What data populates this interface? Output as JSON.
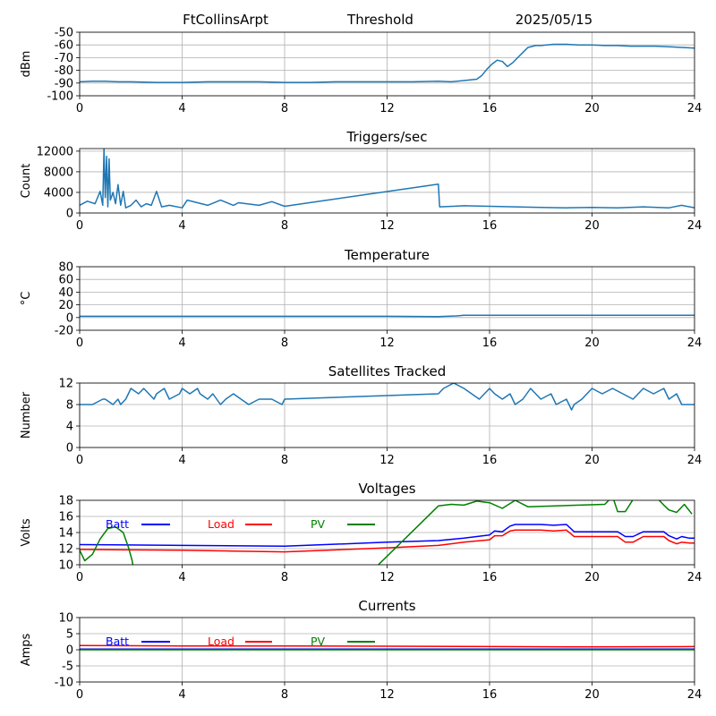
{
  "header": {
    "station": "FtCollinsArpt",
    "mode": "Threshold",
    "date": "2025/05/15"
  },
  "colors": {
    "series": "#1f77b4",
    "grid": "#b0b0b0",
    "batt": "#0000ff",
    "load": "#ff0000",
    "pv": "#008000"
  },
  "chart_data": [
    {
      "type": "line",
      "title": "",
      "xlabel": "",
      "ylabel": "dBm",
      "xlim": [
        0,
        24
      ],
      "ylim": [
        -100,
        -50
      ],
      "xticks": [
        "0",
        "4",
        "8",
        "12",
        "16",
        "20",
        "24"
      ],
      "yticks": [
        "-100",
        "-90",
        "-80",
        "-70",
        "-60",
        "-50"
      ],
      "grid": true,
      "series": [
        {
          "x": [
            0,
            0.5,
            1,
            1.5,
            2,
            3,
            4,
            5,
            6,
            7,
            8,
            9,
            10,
            11,
            12,
            13,
            14,
            14.5,
            15,
            15.5,
            15.7,
            15.9,
            16.1,
            16.3,
            16.5,
            16.7,
            16.9,
            17.1,
            17.3,
            17.5,
            17.8,
            18,
            18.5,
            19,
            19.5,
            20,
            20.5,
            21,
            21.5,
            22,
            22.5,
            23,
            23.5,
            24
          ],
          "y": [
            -89,
            -88.5,
            -88.5,
            -89,
            -89,
            -89.5,
            -89.5,
            -89,
            -89,
            -89,
            -89.5,
            -89.5,
            -89,
            -89,
            -89,
            -89,
            -88.5,
            -89,
            -88,
            -87,
            -84,
            -79,
            -75,
            -72,
            -73,
            -77,
            -74,
            -70,
            -66,
            -62,
            -60.5,
            -60.5,
            -59.5,
            -59.5,
            -60,
            -60,
            -60.5,
            -60.5,
            -61,
            -61,
            -61,
            -61.5,
            -62,
            -62.5
          ]
        }
      ]
    },
    {
      "type": "line",
      "title": "Triggers/sec",
      "xlabel": "",
      "ylabel": "Count",
      "xlim": [
        0,
        24
      ],
      "ylim": [
        0,
        12500
      ],
      "xticks": [
        "0",
        "4",
        "8",
        "12",
        "16",
        "20",
        "24"
      ],
      "yticks": [
        "0",
        "4000",
        "8000",
        "12000"
      ],
      "grid": true,
      "series": [
        {
          "x": [
            0,
            0.3,
            0.6,
            0.8,
            0.9,
            0.95,
            1,
            1.05,
            1.1,
            1.15,
            1.2,
            1.3,
            1.4,
            1.5,
            1.6,
            1.7,
            1.8,
            2,
            2.2,
            2.4,
            2.6,
            2.8,
            3,
            3.2,
            3.5,
            4,
            4.2,
            5,
            5.5,
            6,
            6.2,
            7,
            7.5,
            8,
            14,
            14.05,
            15,
            16,
            17,
            18,
            19,
            20,
            21,
            22,
            23,
            23.5,
            24
          ],
          "y": [
            1500,
            2300,
            1800,
            4200,
            1500,
            12500,
            3000,
            11000,
            1200,
            10500,
            2500,
            4000,
            1800,
            5500,
            1500,
            4200,
            1000,
            1500,
            2500,
            1200,
            1800,
            1500,
            4200,
            1200,
            1500,
            1000,
            2500,
            1500,
            2500,
            1500,
            2000,
            1500,
            2200,
            1300,
            5600,
            1200,
            1400,
            1300,
            1200,
            1100,
            1000,
            1100,
            1000,
            1200,
            1000,
            1500,
            1000
          ]
        }
      ]
    },
    {
      "type": "line",
      "title": "Temperature",
      "xlabel": "",
      "ylabel": "°C",
      "xlim": [
        0,
        24
      ],
      "ylim": [
        -20,
        80
      ],
      "xticks": [
        "0",
        "4",
        "8",
        "12",
        "16",
        "20",
        "24"
      ],
      "yticks": [
        "-20",
        "0",
        "20",
        "40",
        "60",
        "80"
      ],
      "grid": true,
      "series": [
        {
          "x": [
            0,
            4,
            8,
            12,
            14,
            14.7,
            15,
            20,
            24
          ],
          "y": [
            2,
            2,
            2,
            2,
            1.5,
            2.5,
            3.5,
            3.5,
            3.5
          ]
        }
      ]
    },
    {
      "type": "line",
      "title": "Satellites Tracked",
      "xlabel": "",
      "ylabel": "Number",
      "xlim": [
        0,
        24
      ],
      "ylim": [
        0,
        12
      ],
      "xticks": [
        "0",
        "4",
        "8",
        "12",
        "16",
        "20",
        "24"
      ],
      "yticks": [
        "0",
        "4",
        "8",
        "12"
      ],
      "grid": true,
      "series": [
        {
          "x": [
            0,
            0.5,
            0.9,
            1,
            1.3,
            1.5,
            1.6,
            1.8,
            1.9,
            2,
            2.3,
            2.5,
            2.9,
            3,
            3.3,
            3.5,
            3.9,
            4,
            4.3,
            4.6,
            4.7,
            5,
            5.2,
            5.5,
            5.7,
            6,
            6.3,
            6.6,
            7,
            7.5,
            7.9,
            8,
            14,
            14.2,
            14.6,
            15,
            15.3,
            15.6,
            16,
            16.2,
            16.5,
            16.8,
            17,
            17.3,
            17.6,
            18,
            18.4,
            18.6,
            19,
            19.2,
            19.3,
            19.6,
            20,
            20.4,
            20.8,
            21.2,
            21.6,
            22,
            22.4,
            22.8,
            23,
            23.3,
            23.5,
            24
          ],
          "y": [
            8,
            8,
            9,
            9,
            8,
            9,
            8,
            9,
            10,
            11,
            10,
            11,
            9,
            10,
            11,
            9,
            10,
            11,
            10,
            11,
            10,
            9,
            10,
            8,
            9,
            10,
            9,
            8,
            9,
            9,
            8,
            9,
            10,
            11,
            12,
            11,
            10,
            9,
            11,
            10,
            9,
            10,
            8,
            9,
            11,
            9,
            10,
            8,
            9,
            7,
            8,
            9,
            11,
            10,
            11,
            10,
            9,
            11,
            10,
            11,
            9,
            10,
            8,
            8
          ]
        }
      ]
    },
    {
      "type": "line",
      "title": "Voltages",
      "xlabel": "",
      "ylabel": "Volts",
      "xlim": [
        0,
        24
      ],
      "ylim": [
        10,
        18
      ],
      "xticks": [
        "0",
        "4",
        "8",
        "12",
        "16",
        "20",
        "24"
      ],
      "yticks": [
        "10",
        "12",
        "14",
        "16",
        "18"
      ],
      "grid": true,
      "legend": "top-left",
      "series": [
        {
          "name": "Batt",
          "x": [
            0,
            4,
            8,
            12,
            14,
            15,
            16,
            16.2,
            16.5,
            16.8,
            17,
            17.5,
            18,
            18.5,
            19,
            19.3,
            20,
            21,
            21.3,
            21.6,
            22,
            22.8,
            23,
            23.3,
            23.5,
            23.8,
            24
          ],
          "y": [
            12.5,
            12.4,
            12.3,
            12.8,
            13.0,
            13.3,
            13.7,
            14.2,
            14.1,
            14.8,
            15.0,
            15.0,
            15.0,
            14.9,
            15.0,
            14.1,
            14.1,
            14.1,
            13.5,
            13.5,
            14.1,
            14.1,
            13.6,
            13.2,
            13.5,
            13.3,
            13.3
          ]
        },
        {
          "name": "Load",
          "x": [
            0,
            4,
            8,
            12,
            14,
            15,
            16,
            16.2,
            16.5,
            16.8,
            17,
            17.5,
            18,
            18.5,
            19,
            19.3,
            20,
            21,
            21.3,
            21.6,
            22,
            22.8,
            23,
            23.3,
            23.5,
            23.8,
            24
          ],
          "y": [
            11.9,
            11.8,
            11.6,
            12.1,
            12.4,
            12.8,
            13.1,
            13.6,
            13.6,
            14.2,
            14.3,
            14.3,
            14.3,
            14.2,
            14.3,
            13.5,
            13.5,
            13.5,
            12.8,
            12.8,
            13.5,
            13.5,
            13.0,
            12.6,
            12.8,
            12.7,
            12.7
          ]
        },
        {
          "name": "PV",
          "x": [
            0,
            0.2,
            0.5,
            0.8,
            1.1,
            1.4,
            1.7,
            1.9,
            2.05,
            2.1,
            11.5,
            14,
            14.5,
            15,
            15.5,
            16,
            16.5,
            17,
            17.5,
            20.5,
            20.8,
            21,
            21.3,
            21.6,
            22,
            22.5,
            22.8,
            23,
            23.3,
            23.6,
            23.9
          ],
          "y": [
            11.8,
            10.5,
            11.3,
            13.2,
            14.5,
            14.7,
            14.0,
            12.2,
            10.5,
            9.5,
            9.5,
            17.3,
            17.5,
            17.4,
            17.9,
            17.7,
            17.0,
            18.0,
            17.2,
            17.5,
            18.5,
            16.6,
            16.6,
            18.1,
            18.4,
            18.4,
            17.4,
            16.8,
            16.5,
            17.5,
            16.3
          ]
        }
      ]
    },
    {
      "type": "line",
      "title": "Currents",
      "xlabel": "",
      "ylabel": "Amps",
      "xlim": [
        0,
        24
      ],
      "ylim": [
        -10,
        10
      ],
      "xticks": [
        "0",
        "4",
        "8",
        "12",
        "16",
        "20",
        "24"
      ],
      "yticks": [
        "-10",
        "-5",
        "0",
        "5",
        "10"
      ],
      "grid": true,
      "legend": "top-left",
      "series": [
        {
          "name": "Batt",
          "x": [
            0,
            24
          ],
          "y": [
            0.2,
            0.2
          ]
        },
        {
          "name": "Load",
          "x": [
            0,
            4,
            8,
            12,
            16,
            20,
            24
          ],
          "y": [
            1.3,
            1.2,
            1.2,
            1.1,
            1.0,
            0.9,
            1.0
          ]
        },
        {
          "name": "PV",
          "x": [
            0,
            24
          ],
          "y": [
            0,
            0
          ]
        }
      ]
    }
  ]
}
